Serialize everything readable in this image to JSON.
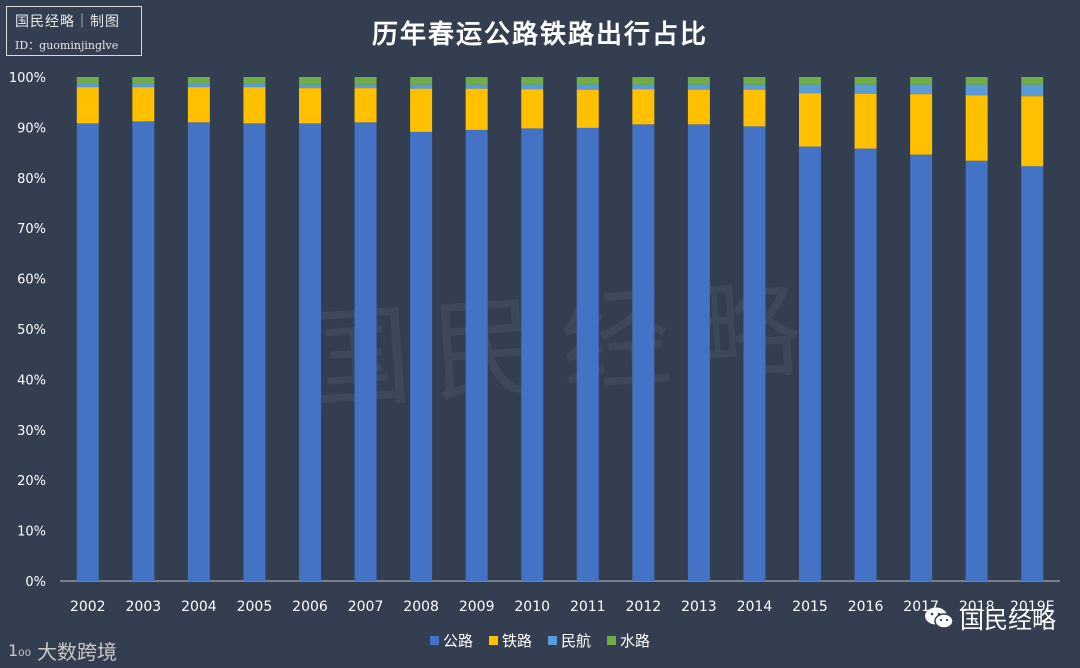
{
  "logo": {
    "title": "国民经略｜制图",
    "id": "ID：guominjinglve"
  },
  "watermark": "国民经略",
  "footer": {
    "left_brand": "大数跨境",
    "right_brand": "国民经略"
  },
  "colors": {
    "公路": "#4472c4",
    "铁路": "#ffc000",
    "民航": "#5b9bd5",
    "水路": "#70ad47",
    "background": "#333e50"
  },
  "chart_data": {
    "type": "bar",
    "stacked": true,
    "title": "历年春运公路铁路出行占比",
    "categories": [
      "2002",
      "2003",
      "2004",
      "2005",
      "2006",
      "2007",
      "2008",
      "2009",
      "2010",
      "2011",
      "2012",
      "2013",
      "2014",
      "2015",
      "2016",
      "2017",
      "2018",
      "2019E"
    ],
    "series": [
      {
        "name": "公路",
        "values": [
          90.8,
          91.2,
          91.0,
          90.8,
          90.8,
          91.0,
          89.1,
          89.5,
          89.8,
          89.9,
          90.6,
          90.6,
          90.2,
          86.2,
          85.8,
          84.6,
          83.4,
          82.3
        ]
      },
      {
        "name": "铁路",
        "values": [
          7.2,
          6.8,
          7.0,
          7.2,
          7.0,
          6.8,
          8.6,
          8.2,
          7.8,
          7.6,
          7.0,
          6.9,
          7.3,
          10.6,
          10.9,
          12.0,
          13.0,
          13.9
        ]
      },
      {
        "name": "民航",
        "values": [
          0.6,
          0.6,
          0.6,
          0.6,
          0.7,
          0.7,
          0.8,
          0.8,
          0.9,
          1.0,
          0.9,
          1.0,
          1.0,
          1.7,
          1.8,
          1.9,
          2.1,
          2.3
        ]
      },
      {
        "name": "水路",
        "values": [
          1.4,
          1.4,
          1.4,
          1.4,
          1.5,
          1.5,
          1.5,
          1.5,
          1.5,
          1.5,
          1.5,
          1.5,
          1.5,
          1.5,
          1.5,
          1.5,
          1.5,
          1.5
        ]
      }
    ],
    "ylim": [
      0,
      100
    ],
    "yticks": [
      "0%",
      "10%",
      "20%",
      "30%",
      "40%",
      "50%",
      "60%",
      "70%",
      "80%",
      "90%",
      "100%"
    ],
    "grid": false,
    "legend_position": "bottom"
  }
}
